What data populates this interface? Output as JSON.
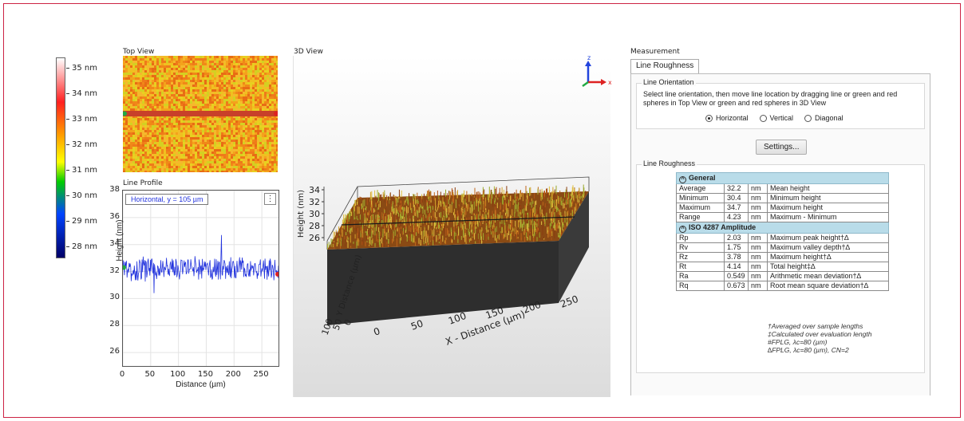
{
  "colorbar": {
    "ticks": [
      "35 nm",
      "34 nm",
      "33 nm",
      "32 nm",
      "31 nm",
      "30 nm",
      "29 nm",
      "28 nm"
    ]
  },
  "top_view": {
    "title": "Top View"
  },
  "line_profile": {
    "title": "Line Profile",
    "legend": "Horizontal, y = 105 µm",
    "menu_glyph": "⋮",
    "ylabel": "Height (nm)",
    "xlabel": "Distance (µm)",
    "y_ticks": [
      "38",
      "36",
      "34",
      "32",
      "30",
      "28",
      "26"
    ],
    "x_ticks": [
      "0",
      "50",
      "100",
      "150",
      "200",
      "250"
    ]
  },
  "chart_data": {
    "type": "line",
    "x_range": [
      0,
      280
    ],
    "ylim": [
      25,
      38
    ],
    "series": [
      {
        "values_summary": {
          "mean": 32.2,
          "min": 30.4,
          "max": 34.7
        }
      }
    ]
  },
  "view3d": {
    "title": "3D View",
    "zlabel": "Height (nm)",
    "z_ticks": [
      "34",
      "32",
      "30",
      "28",
      "26"
    ],
    "x_axis_label": "X - Distance (µm)",
    "x_ticks": [
      "0",
      "50",
      "100",
      "150",
      "200",
      "250"
    ],
    "y_axis_label": "Y Distance (µm)",
    "y_ticks": [
      "0",
      "50",
      "100"
    ],
    "axes": {
      "x": "x",
      "z": "z"
    }
  },
  "measurement": {
    "title": "Measurement",
    "tab": "Line Roughness",
    "orientation": {
      "title": "Line Orientation",
      "instructions": "Select line orientation, then move line location by dragging line or green and red spheres in Top View or green and red spheres in 3D View",
      "options": [
        "Horizontal",
        "Vertical",
        "Diagonal"
      ],
      "selected": "Horizontal"
    },
    "settings_button": "Settings...",
    "roughness_title": "Line Roughness",
    "sections": [
      {
        "title": "General",
        "rows": [
          [
            "Average",
            "32.2",
            "nm",
            "Mean height"
          ],
          [
            "Minimum",
            "30.4",
            "nm",
            "Minimum height"
          ],
          [
            "Maximum",
            "34.7",
            "nm",
            "Maximum height"
          ],
          [
            "Range",
            "4.23",
            "nm",
            "Maximum - Minimum"
          ]
        ]
      },
      {
        "title": "ISO 4287 Amplitude",
        "rows": [
          [
            "Rp",
            "2.03",
            "nm",
            "Maximum peak height†∆"
          ],
          [
            "Rv",
            "1.75",
            "nm",
            "Maximum valley depth†∆"
          ],
          [
            "Rz",
            "3.78",
            "nm",
            "Maximum height†∆"
          ],
          [
            "Rt",
            "4.14",
            "nm",
            "Total height‡∆"
          ],
          [
            "Ra",
            "0.549",
            "nm",
            "Arithmetic mean deviation†∆"
          ],
          [
            "Rq",
            "0.673",
            "nm",
            "Root mean square deviation†∆"
          ]
        ]
      }
    ],
    "footnotes": [
      "†Averaged over sample lengths",
      "‡Calculated over evaluation length",
      "#FPLG, λc=80 (µm)",
      "∆FPLG, λc=80 (µm), CN=2"
    ]
  },
  "colors": {
    "profile_line": "#2233dd",
    "frame": "#cc2244",
    "section_header": "#b9dce9",
    "cut_line": "#c8402a"
  }
}
